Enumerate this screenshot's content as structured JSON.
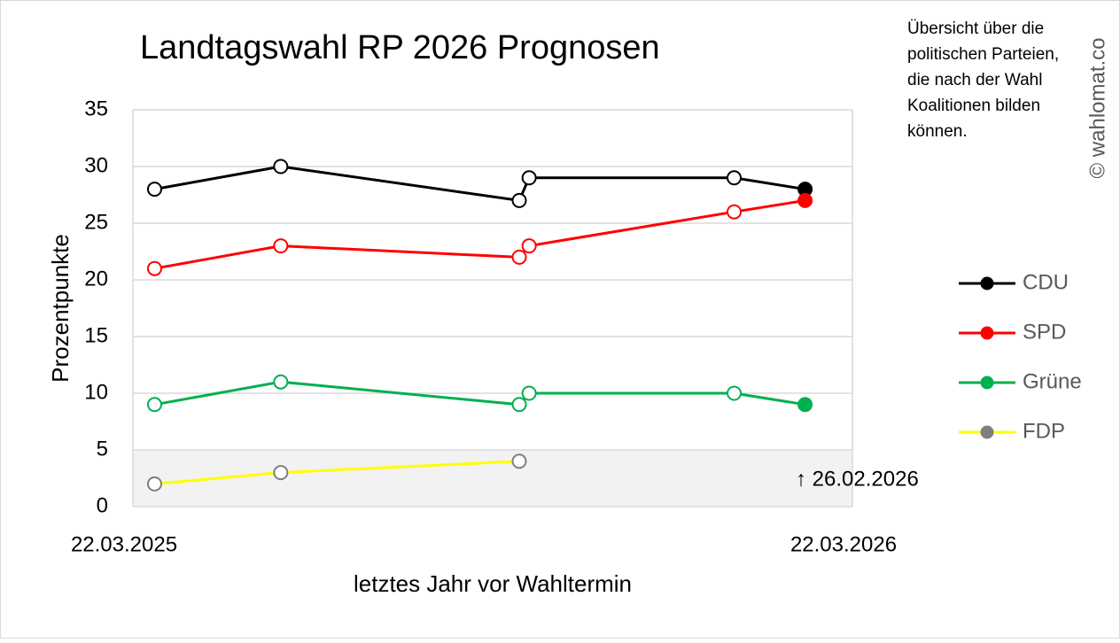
{
  "chart_data": {
    "type": "line",
    "title": "Landtagswahl RP 2026 Prognosen",
    "note": [
      "Übersicht über die",
      "politischen Parteien,",
      "die nach der Wahl",
      "Koalitionen bilden",
      "können."
    ],
    "watermark": "© wahlomat.co",
    "annotation": "↑ 26.02.2026",
    "x_label": "letztes Jahr vor Wahltermin",
    "y_label": "Prozentpunkte",
    "x": [
      "2025-04-02",
      "2025-06-05",
      "2025-10-04",
      "2025-10-09",
      "2026-01-21",
      "2026-02-26"
    ],
    "xlim": [
      "2025-03-22",
      "2026-03-22"
    ],
    "xticks": [
      {
        "value": "2025-03-22",
        "label": "22.03.2025"
      },
      {
        "value": "2026-03-22",
        "label": "22.03.2026"
      }
    ],
    "ylim": [
      0,
      35
    ],
    "yticks": [
      0,
      5,
      10,
      15,
      20,
      25,
      30,
      35
    ],
    "grid": true,
    "threshold": 5,
    "last_point_filled": true,
    "legend": "right",
    "series": [
      {
        "name": "CDU",
        "color": "#000000",
        "values": [
          28,
          30,
          27,
          29,
          29,
          28
        ]
      },
      {
        "name": "SPD",
        "color": "#ff0000",
        "values": [
          21,
          23,
          22,
          23,
          26,
          27
        ]
      },
      {
        "name": "Grüne",
        "color": "#00b050",
        "values": [
          9,
          11,
          9,
          10,
          10,
          9
        ]
      },
      {
        "name": "FDP",
        "color": "#ffff00",
        "marker_color": "#7f7f7f",
        "values": [
          2,
          3,
          4,
          null,
          null,
          null
        ]
      }
    ]
  }
}
